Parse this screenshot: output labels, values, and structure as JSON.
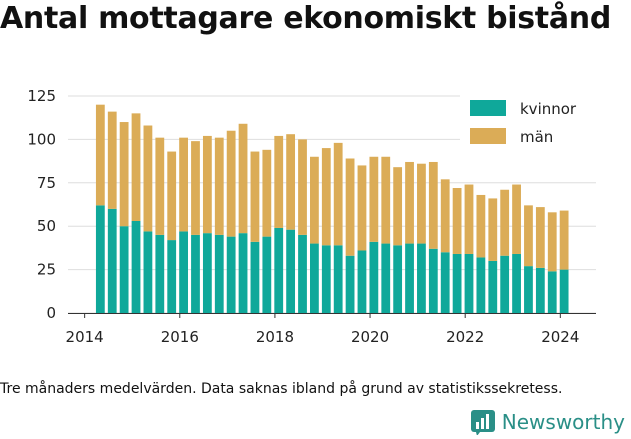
{
  "title": "Antal mottagare ekonomiskt bistånd",
  "footnote": "Tre månaders medelvärden. Data saknas ibland på grund av statistikssekretess.",
  "brand": {
    "name": "Newsworthy",
    "icon": "bar-chart-icon",
    "color": "#2a8f87"
  },
  "chart_data": {
    "type": "bar",
    "stacked": true,
    "grid": true,
    "legend_position": "top-right",
    "ylim": [
      0,
      125
    ],
    "yticks": [
      0,
      25,
      50,
      75,
      100,
      125
    ],
    "xlim": [
      2013.65,
      2024.75
    ],
    "xticks": [
      2014,
      2016,
      2018,
      2020,
      2022,
      2024
    ],
    "x": [
      2014.33,
      2014.58,
      2014.83,
      2015.08,
      2015.33,
      2015.58,
      2015.83,
      2016.08,
      2016.33,
      2016.58,
      2016.83,
      2017.08,
      2017.33,
      2017.58,
      2017.83,
      2018.08,
      2018.33,
      2018.58,
      2018.83,
      2019.08,
      2019.33,
      2019.58,
      2019.83,
      2020.08,
      2020.33,
      2020.58,
      2020.83,
      2021.08,
      2021.33,
      2021.58,
      2021.83,
      2022.08,
      2022.33,
      2022.58,
      2022.83,
      2023.08,
      2023.33,
      2023.58,
      2023.83,
      2024.08
    ],
    "series": [
      {
        "name": "kvinnor",
        "color": "#0fa89a",
        "values": [
          62,
          60,
          50,
          53,
          47,
          45,
          42,
          47,
          45,
          46,
          45,
          44,
          46,
          41,
          44,
          49,
          48,
          45,
          40,
          39,
          39,
          33,
          36,
          41,
          40,
          39,
          40,
          40,
          37,
          35,
          34,
          34,
          32,
          30,
          33,
          34,
          27,
          26,
          24,
          25
        ]
      },
      {
        "name": "män",
        "color": "#dbac57",
        "values": [
          58,
          56,
          60,
          62,
          61,
          56,
          51,
          54,
          54,
          56,
          56,
          61,
          63,
          52,
          50,
          53,
          55,
          55,
          50,
          56,
          59,
          56,
          49,
          49,
          50,
          45,
          47,
          46,
          50,
          42,
          38,
          40,
          36,
          36,
          38,
          40,
          35,
          35,
          34,
          34
        ]
      }
    ]
  }
}
